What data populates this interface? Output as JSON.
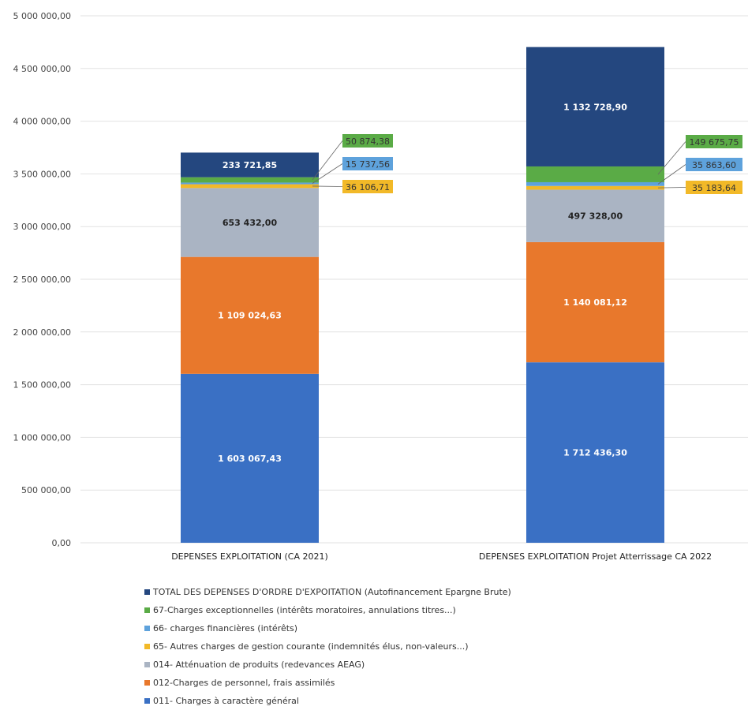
{
  "chart_data": {
    "type": "bar",
    "stacked": true,
    "title": "",
    "xlabel": "",
    "ylabel": "",
    "ylim": [
      0,
      5000000
    ],
    "y_ticks": [
      "0,00",
      "500 000,00",
      "1 000 000,00",
      "1 500 000,00",
      "2 000 000,00",
      "2 500 000,00",
      "3 000 000,00",
      "3 500 000,00",
      "4 000 000,00",
      "4 500 000,00",
      "5 000 000,00"
    ],
    "grid": true,
    "legend_position": "bottom",
    "categories": [
      "DEPENSES EXPLOITATION (CA 2021)",
      "DEPENSES EXPLOITATION Projet Atterrissage CA 2022"
    ],
    "series": [
      {
        "name": "011- Charges à caractère général",
        "color": "#3a70c4",
        "values": [
          1603067.43,
          1712436.3
        ],
        "labels": [
          "1 603 067,43",
          "1 712 436,30"
        ],
        "label_mode": "inside"
      },
      {
        "name": "012-Charges de personnel, frais assimilés",
        "color": "#e8782c",
        "values": [
          1109024.63,
          1140081.12
        ],
        "labels": [
          "1 109 024,63",
          "1 140 081,12"
        ],
        "label_mode": "inside"
      },
      {
        "name": "014- Atténuation de produits (redevances AEAG)",
        "color": "#aab4c3",
        "values": [
          653432.0,
          497328.0
        ],
        "labels": [
          "653 432,00",
          "497 328,00"
        ],
        "label_mode": "inside"
      },
      {
        "name": "65- Autres charges de gestion courante (indemnités élus, non-valeurs...)",
        "color": "#f2b928",
        "values": [
          36106.71,
          35183.64
        ],
        "labels": [
          "36 106,71",
          "35 183,64"
        ],
        "label_mode": "callout"
      },
      {
        "name": "66- charges financières (intérêts)",
        "color": "#5ea2dc",
        "values": [
          15737.56,
          35863.6
        ],
        "labels": [
          "15 737,56",
          "35 863,60"
        ],
        "label_mode": "callout"
      },
      {
        "name": "67-Charges exceptionnelles (intérêts moratoires, annulations titres...)",
        "color": "#5aab46",
        "values": [
          50874.38,
          149675.75
        ],
        "labels": [
          "50 874,38",
          "149 675,75"
        ],
        "label_mode": "callout"
      },
      {
        "name": "TOTAL DES DEPENSES D'ORDRE D'EXPOITATION (Autofinancement Epargne Brute)",
        "color": "#24477f",
        "values": [
          233721.85,
          1132728.9
        ],
        "labels": [
          "233 721,85",
          "1 132 728,90"
        ],
        "label_mode": "inside"
      }
    ],
    "legend_order": [
      6,
      5,
      4,
      3,
      2,
      1,
      0
    ]
  }
}
